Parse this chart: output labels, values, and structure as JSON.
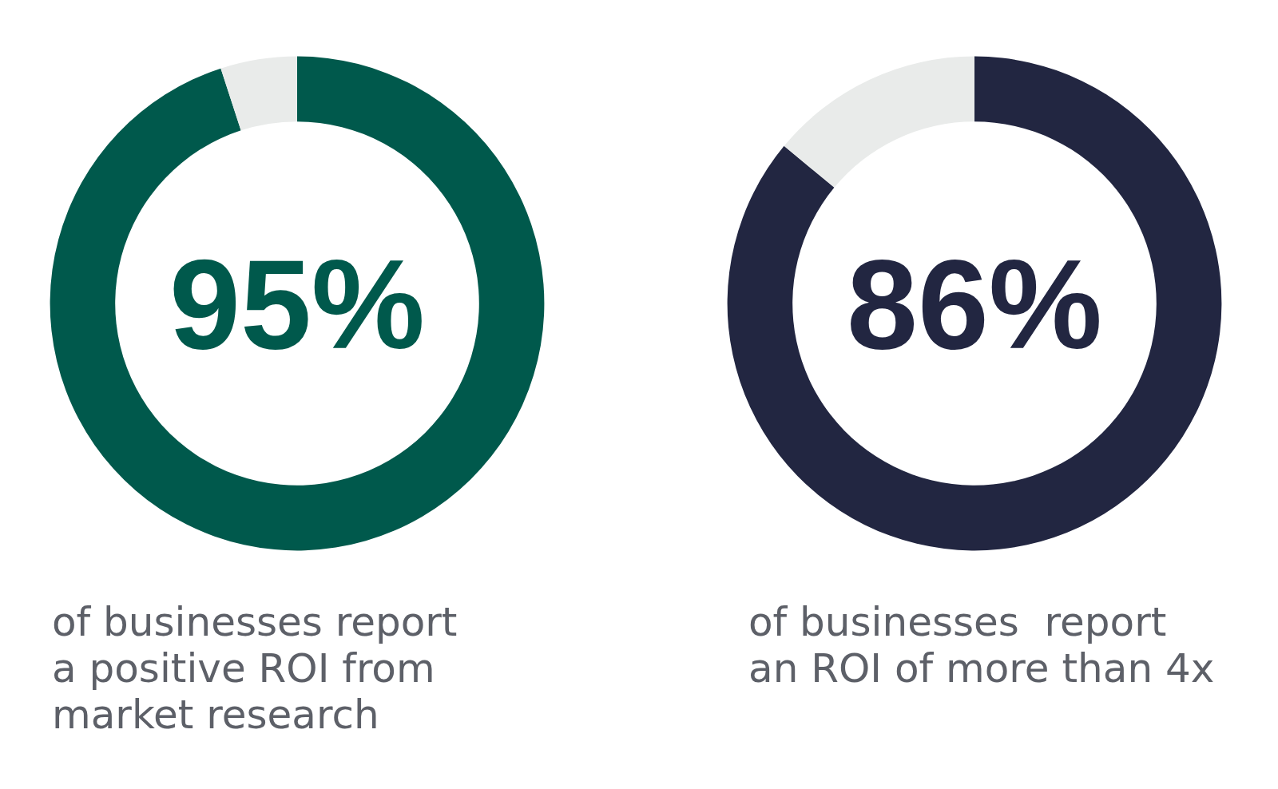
{
  "chart_data": [
    {
      "type": "donut",
      "categories": [
        null,
        null
      ],
      "values": [
        95,
        5
      ],
      "colors": [
        "#00594c",
        "#e9ebea"
      ],
      "value_labels": [
        "95%",
        null
      ],
      "annotations": [
        "of businesses report\na positive ROI from\nmarket research"
      ]
    },
    {
      "type": "donut",
      "categories": [
        null,
        null
      ],
      "values": [
        86,
        14
      ],
      "colors": [
        "#222641",
        "#e9ebea"
      ],
      "value_labels": [
        "86%",
        null
      ],
      "annotations": [
        "of businesses  report\nan ROI of more than 4x"
      ]
    }
  ]
}
